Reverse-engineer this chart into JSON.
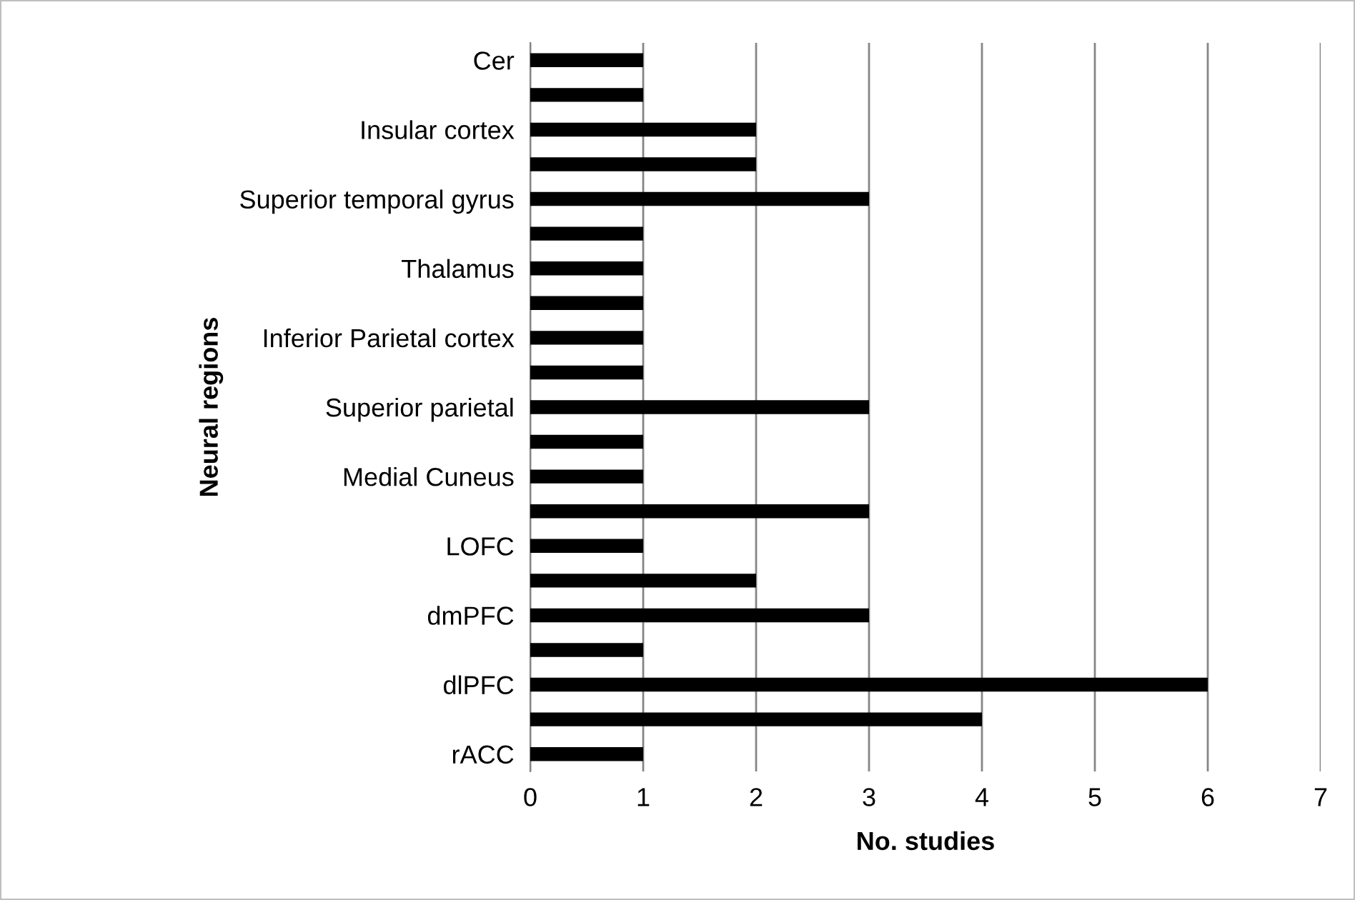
{
  "chart_data": {
    "type": "bar",
    "orientation": "horizontal",
    "xlabel": "No. studies",
    "ylabel": "Neural regions",
    "categories": [
      "Cer",
      null,
      "Insular cortex",
      null,
      "Superior temporal gyrus",
      null,
      "Thalamus",
      null,
      "Inferior Parietal cortex",
      null,
      "Superior parietal",
      null,
      "Medial Cuneus",
      null,
      "LOFC",
      null,
      "dmPFC",
      null,
      "dlPFC",
      null,
      "rACC"
    ],
    "values": [
      1,
      1,
      2,
      2,
      3,
      1,
      1,
      1,
      1,
      1,
      3,
      1,
      1,
      3,
      1,
      2,
      3,
      1,
      6,
      4,
      1
    ],
    "color": "#000000",
    "xlim": [
      0,
      7
    ],
    "xticks": [
      0,
      1,
      2,
      3,
      4,
      5,
      6,
      7
    ],
    "grid": "x"
  }
}
